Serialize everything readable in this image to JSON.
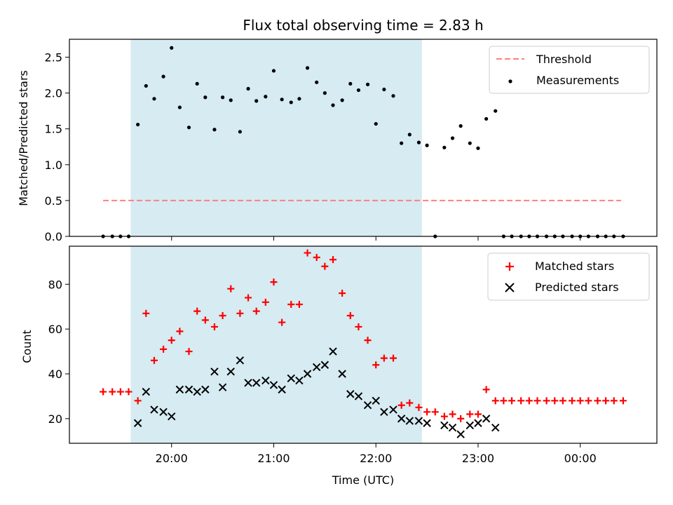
{
  "colors": {
    "shade": "#add8e6",
    "threshold": "#ff7f7f",
    "matched": "#ff0000",
    "predicted": "#000000",
    "measurement": "#000000"
  },
  "chart_data": [
    {
      "type": "scatter",
      "title": "Flux total observing time = 2.83 h",
      "xlabel": "",
      "ylabel": "Matched/Predicted stars",
      "xlim_hours": [
        19.0,
        24.75
      ],
      "ylim": [
        0,
        2.75
      ],
      "yticks": [
        0.0,
        0.5,
        1.0,
        1.5,
        2.0,
        2.5
      ],
      "ytick_labels": [
        "0.0",
        "0.5",
        "1.0",
        "1.5",
        "2.0",
        "2.5"
      ],
      "xticks_hours": [
        20,
        21,
        22,
        23,
        24
      ],
      "shaded_span_hours": [
        19.6,
        22.45
      ],
      "grid": false,
      "legend_position": "top-right",
      "threshold": {
        "name": "Threshold",
        "value": 0.5,
        "x_range_hours": [
          19.33,
          24.4
        ],
        "style": "dashed"
      },
      "series": [
        {
          "name": "Measurements",
          "x_hours": [
            19.33,
            19.42,
            19.5,
            19.58,
            19.67,
            19.75,
            19.83,
            19.92,
            20.0,
            20.08,
            20.17,
            20.25,
            20.33,
            20.42,
            20.5,
            20.58,
            20.67,
            20.75,
            20.83,
            20.92,
            21.0,
            21.08,
            21.17,
            21.25,
            21.33,
            21.42,
            21.5,
            21.58,
            21.67,
            21.75,
            21.83,
            21.92,
            22.0,
            22.08,
            22.17,
            22.25,
            22.33,
            22.42,
            22.5,
            22.58,
            22.67,
            22.75,
            22.83,
            22.92,
            23.0,
            23.08,
            23.17,
            23.25,
            23.33,
            23.42,
            23.5,
            23.58,
            23.67,
            23.75,
            23.83,
            23.92,
            24.0,
            24.08,
            24.17,
            24.25,
            24.33,
            24.42
          ],
          "y": [
            0.0,
            0.0,
            0.0,
            0.0,
            1.56,
            2.1,
            1.92,
            2.23,
            2.63,
            1.8,
            1.52,
            2.13,
            1.94,
            1.49,
            1.94,
            1.9,
            1.46,
            2.06,
            1.89,
            1.95,
            2.31,
            1.91,
            1.87,
            1.92,
            2.35,
            2.15,
            2.0,
            1.83,
            1.9,
            2.13,
            2.04,
            2.12,
            1.57,
            2.05,
            1.96,
            1.3,
            1.42,
            1.31,
            1.27,
            0.0,
            1.24,
            1.37,
            1.54,
            1.3,
            1.23,
            1.64,
            1.75,
            0.0,
            0.0,
            0.0,
            0.0,
            0.0,
            0.0,
            0.0,
            0.0,
            0.0,
            0.0,
            0.0,
            0.0,
            0.0,
            0.0,
            0.0
          ]
        }
      ]
    },
    {
      "type": "scatter",
      "title": "",
      "xlabel": "Time (UTC)",
      "ylabel": "Count",
      "xlim_hours": [
        19.0,
        24.75
      ],
      "ylim": [
        9,
        97
      ],
      "yticks": [
        20,
        40,
        60,
        80
      ],
      "ytick_labels": [
        "20",
        "40",
        "60",
        "80"
      ],
      "xticks_hours": [
        20,
        21,
        22,
        23,
        24
      ],
      "xtick_labels": [
        "20:00",
        "21:00",
        "22:00",
        "23:00",
        "00:00"
      ],
      "shaded_span_hours": [
        19.6,
        22.45
      ],
      "grid": false,
      "legend_position": "top-right",
      "series": [
        {
          "name": "Matched stars",
          "marker": "plus",
          "x_hours": [
            19.33,
            19.42,
            19.5,
            19.58,
            19.67,
            19.75,
            19.83,
            19.92,
            20.0,
            20.08,
            20.17,
            20.25,
            20.33,
            20.42,
            20.5,
            20.58,
            20.67,
            20.75,
            20.83,
            20.92,
            21.0,
            21.08,
            21.17,
            21.25,
            21.33,
            21.42,
            21.5,
            21.58,
            21.67,
            21.75,
            21.83,
            21.92,
            22.0,
            22.08,
            22.17,
            22.25,
            22.33,
            22.42,
            22.5,
            22.58,
            22.67,
            22.75,
            22.83,
            22.92,
            23.0,
            23.08,
            23.17,
            23.25,
            23.33,
            23.42,
            23.5,
            23.58,
            23.67,
            23.75,
            23.83,
            23.92,
            24.0,
            24.08,
            24.17,
            24.25,
            24.33,
            24.42
          ],
          "y": [
            32,
            32,
            32,
            32,
            28,
            67,
            46,
            51,
            55,
            59,
            50,
            68,
            64,
            61,
            66,
            78,
            67,
            74,
            68,
            72,
            81,
            63,
            71,
            71,
            94,
            92,
            88,
            91,
            76,
            66,
            61,
            55,
            44,
            47,
            47,
            26,
            27,
            25,
            23,
            23,
            21,
            22,
            20,
            22,
            22,
            33,
            28,
            28,
            28,
            28,
            28,
            28,
            28,
            28,
            28,
            28,
            28,
            28,
            28,
            28,
            28,
            28
          ]
        },
        {
          "name": "Predicted stars",
          "marker": "x",
          "x_hours": [
            19.67,
            19.75,
            19.83,
            19.92,
            20.0,
            20.08,
            20.17,
            20.25,
            20.33,
            20.42,
            20.5,
            20.58,
            20.67,
            20.75,
            20.83,
            20.92,
            21.0,
            21.08,
            21.17,
            21.25,
            21.33,
            21.42,
            21.5,
            21.58,
            21.67,
            21.75,
            21.83,
            21.92,
            22.0,
            22.08,
            22.17,
            22.25,
            22.33,
            22.42,
            22.5,
            22.58,
            22.67,
            22.75,
            22.83,
            22.92,
            23.0,
            23.08,
            23.17
          ],
          "y": [
            18,
            32,
            24,
            23,
            21,
            33,
            33,
            32,
            33,
            41,
            34,
            41,
            46,
            36,
            36,
            37,
            35,
            33,
            38,
            37,
            40,
            43,
            44,
            50,
            40,
            31,
            30,
            26,
            28,
            23,
            24,
            20,
            19,
            19,
            18,
            null,
            17,
            16,
            13,
            17,
            18,
            20,
            16
          ]
        }
      ]
    }
  ]
}
